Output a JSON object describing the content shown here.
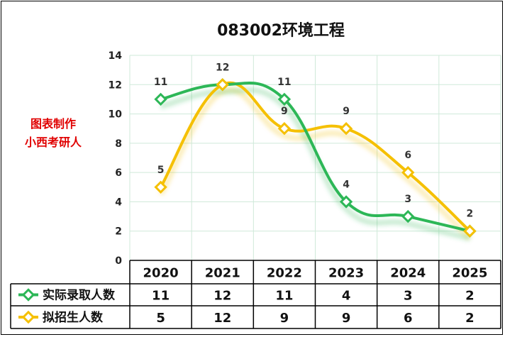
{
  "chart_data": {
    "type": "line",
    "title": "083002环境工程",
    "categories": [
      "2020",
      "2021",
      "2022",
      "2023",
      "2024",
      "2025"
    ],
    "ylim": [
      0,
      14
    ],
    "yticks": [
      0,
      2,
      4,
      6,
      8,
      10,
      12,
      14
    ],
    "grid": true,
    "series": [
      {
        "name": "实际录取人数",
        "values": [
          11,
          12,
          11,
          4,
          3,
          2
        ],
        "color": "#2db757"
      },
      {
        "name": "拟招生人数",
        "values": [
          5,
          12,
          9,
          9,
          6,
          2
        ],
        "color": "#f5c000"
      }
    ],
    "legend": "table-left"
  },
  "note": {
    "line1": "图表制作",
    "line2": "小西考研人"
  }
}
